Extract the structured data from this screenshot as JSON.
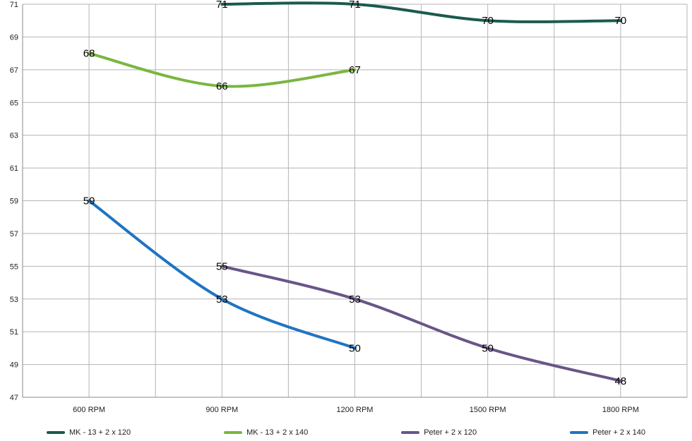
{
  "chart_data": {
    "type": "line",
    "title": "",
    "xlabel": "",
    "ylabel": "",
    "categories": [
      "600 RPM",
      "900 RPM",
      "1200 RPM",
      "1500 RPM",
      "1800 RPM"
    ],
    "ylim": [
      47,
      71
    ],
    "yticks": [
      47,
      49,
      51,
      53,
      55,
      57,
      59,
      61,
      63,
      65,
      67,
      69,
      71
    ],
    "grid": true,
    "legend_position": "bottom",
    "series": [
      {
        "name": "MK - 13 + 2 x 120",
        "color": "#1b5a4e",
        "values": [
          null,
          71,
          71,
          70,
          70
        ]
      },
      {
        "name": "MK - 13 + 2 x 140",
        "color": "#7ab640",
        "values": [
          68,
          66,
          67,
          null,
          null
        ]
      },
      {
        "name": "Peter + 2 x 120",
        "color": "#6a5488",
        "values": [
          null,
          55,
          53,
          50,
          48
        ]
      },
      {
        "name": "Peter + 2 x 140",
        "color": "#1f74c3",
        "values": [
          59,
          53,
          50,
          null,
          null
        ]
      }
    ]
  }
}
